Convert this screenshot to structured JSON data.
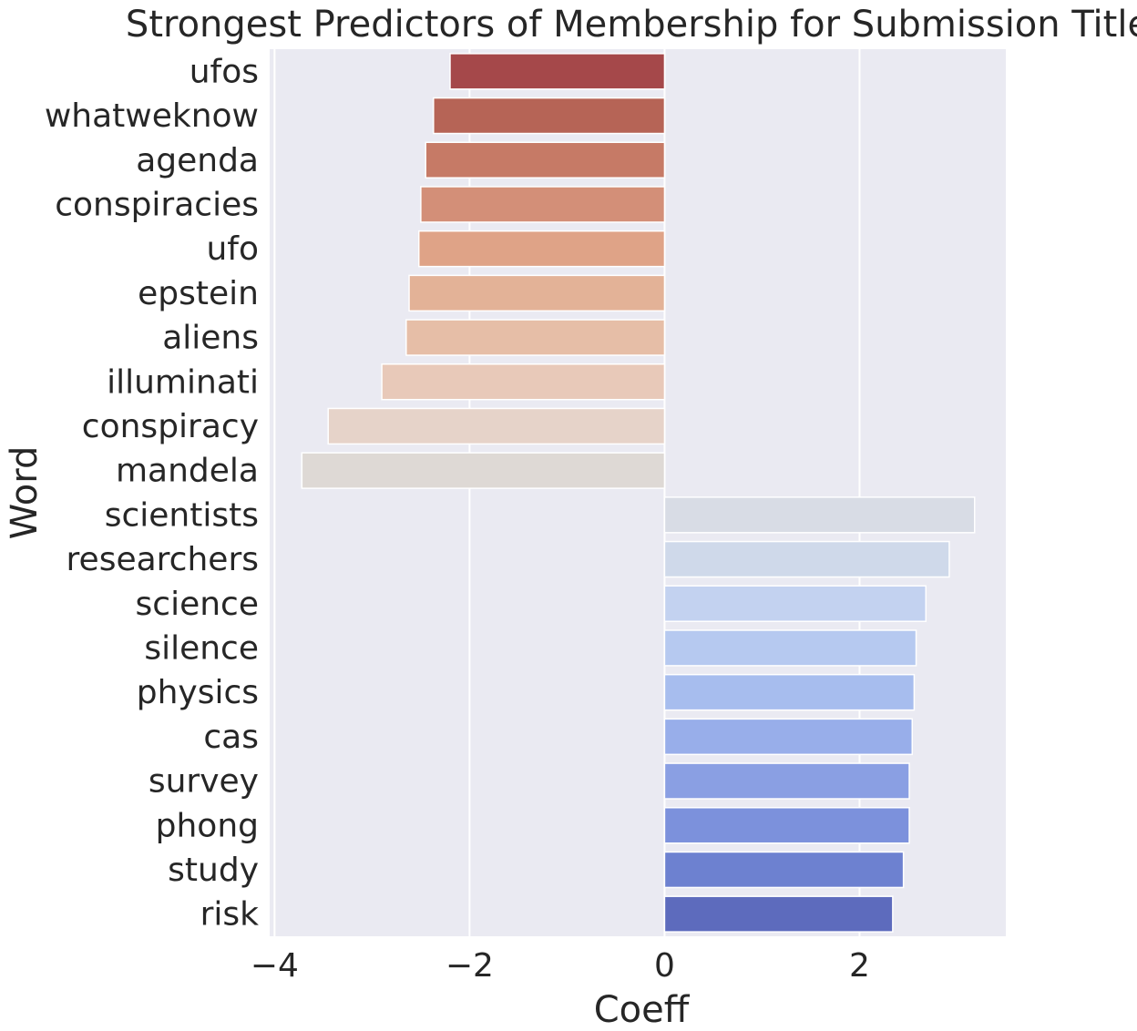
{
  "chart_data": {
    "type": "bar",
    "orientation": "horizontal",
    "title": "Strongest Predictors of Membership for Submission Title",
    "xlabel": "Coeff",
    "ylabel": "Word",
    "xlim": [
      -4.05,
      3.5
    ],
    "xticks": [
      -4,
      -2,
      0,
      2
    ],
    "xtick_labels": [
      "−4",
      "−2",
      "0",
      "2"
    ],
    "grid": true,
    "categories": [
      "ufos",
      "whatweknow",
      "agenda",
      "conspiracies",
      "ufo",
      "epstein",
      "aliens",
      "illuminati",
      "conspiracy",
      "mandela",
      "scientists",
      "researchers",
      "science",
      "silence",
      "physics",
      "cas",
      "survey",
      "phong",
      "study",
      "risk"
    ],
    "values": [
      -2.2,
      -2.37,
      -2.45,
      -2.5,
      -2.52,
      -2.62,
      -2.65,
      -2.9,
      -3.45,
      -3.72,
      3.18,
      2.92,
      2.68,
      2.58,
      2.56,
      2.54,
      2.51,
      2.51,
      2.45,
      2.34
    ],
    "colors": [
      "#a5484a",
      "#b66456",
      "#c67a66",
      "#d38f78",
      "#dfa387",
      "#e3b297",
      "#e6bea7",
      "#e8c9b9",
      "#e6d3c9",
      "#ded9d5",
      "#d8dce5",
      "#cfd9ea",
      "#c3d2f0",
      "#b6c9f0",
      "#a7bdee",
      "#98aeea",
      "#8a9fe3",
      "#7c91dc",
      "#6d81d0",
      "#5d6bbd"
    ]
  }
}
